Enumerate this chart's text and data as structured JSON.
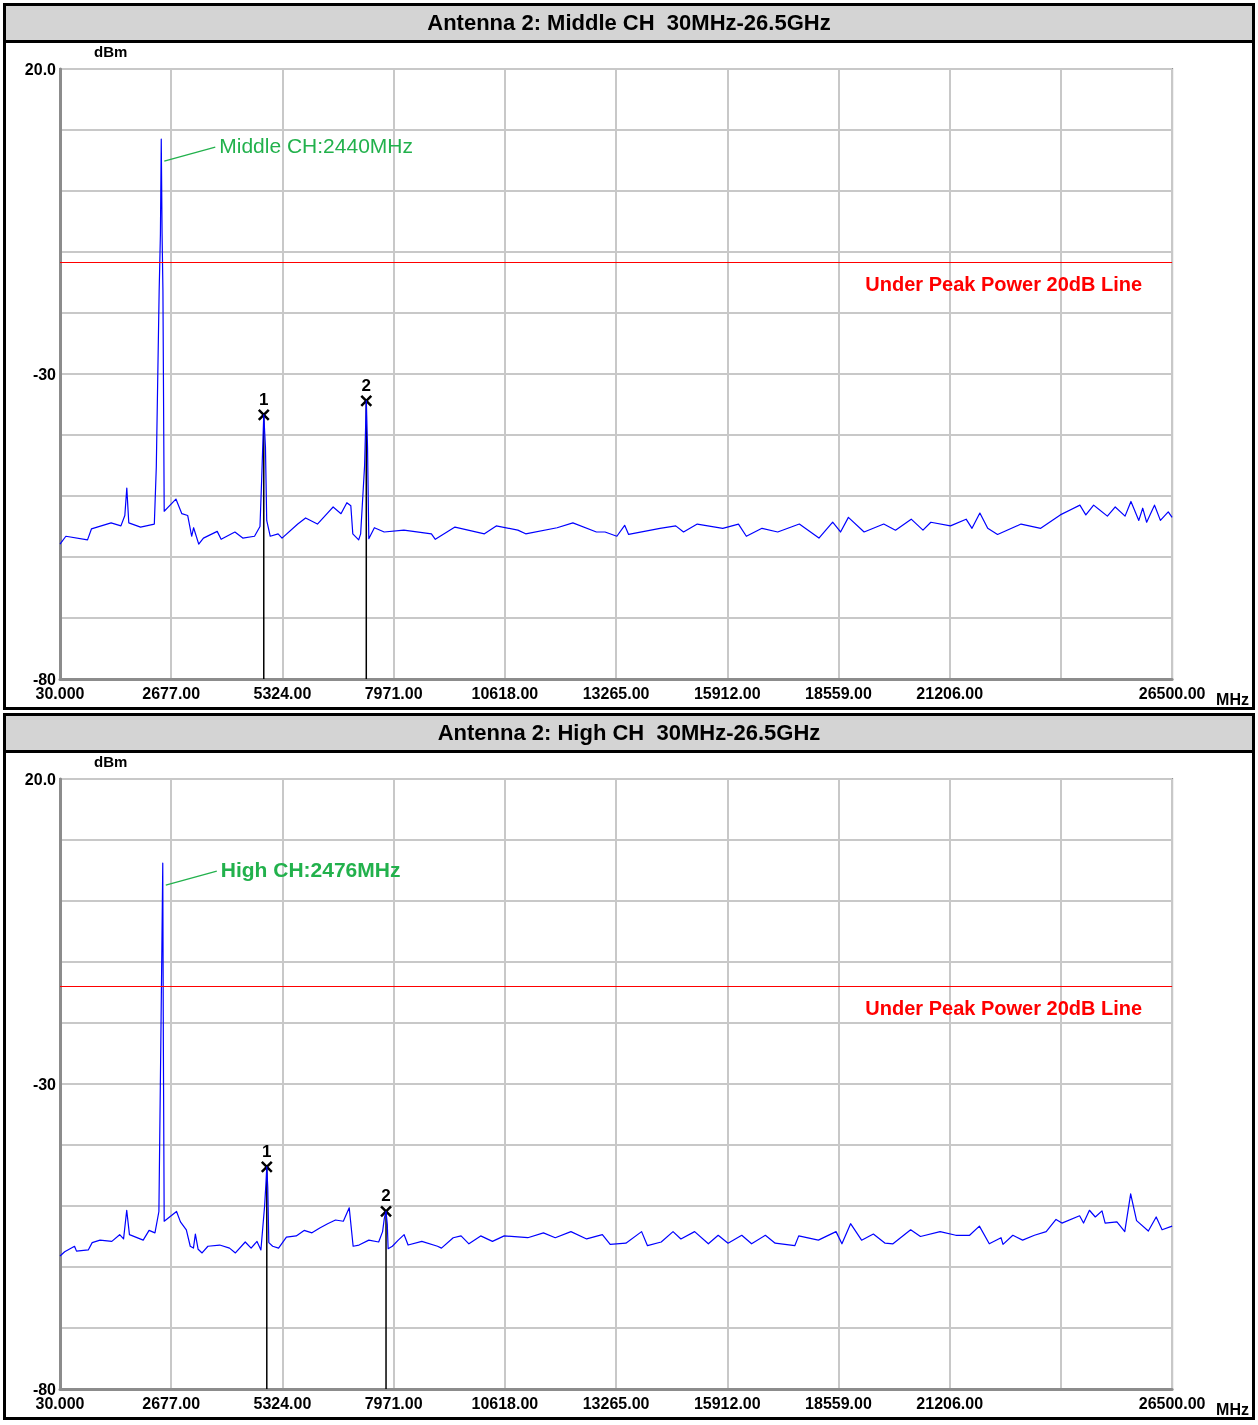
{
  "chart_data": [
    {
      "type": "line",
      "title": "Antenna 2: Middle CH  30MHz-26.5GHz",
      "xlabel": "MHz",
      "ylabel": "dBm",
      "xlim": [
        30,
        26500
      ],
      "ylim": [
        -80,
        20
      ],
      "xticks": [
        {
          "value": 30,
          "label": "30.000"
        },
        {
          "value": 2677,
          "label": "2677.00"
        },
        {
          "value": 5324,
          "label": "5324.00"
        },
        {
          "value": 7971,
          "label": "7971.00"
        },
        {
          "value": 10618,
          "label": "10618.00"
        },
        {
          "value": 13265,
          "label": "13265.00"
        },
        {
          "value": 15912,
          "label": "15912.00"
        },
        {
          "value": 18559,
          "label": "18559.00"
        },
        {
          "value": 21206,
          "label": "21206.00"
        },
        {
          "value": 23853,
          "label": null
        },
        {
          "value": 26500,
          "label": "26500.00"
        }
      ],
      "yticks": [
        {
          "value": 20,
          "label": "20.0"
        },
        {
          "value": 10,
          "label": null
        },
        {
          "value": 0,
          "label": null
        },
        {
          "value": -10,
          "label": null
        },
        {
          "value": -20,
          "label": null
        },
        {
          "value": -30,
          "label": "-30"
        },
        {
          "value": -40,
          "label": null
        },
        {
          "value": -50,
          "label": null
        },
        {
          "value": -60,
          "label": null
        },
        {
          "value": -70,
          "label": null
        },
        {
          "value": -80,
          "label": "-80"
        }
      ],
      "grid": true,
      "ref_lines": [
        {
          "axis": "y",
          "value": -11.6,
          "label": "Under Peak Power 20dB Line",
          "color": "#ff0000"
        }
      ],
      "annotations": [
        {
          "text": "Middle CH:2440MHz",
          "x": 2440,
          "y": 8.5
        },
        {
          "text": "1",
          "x": 4880,
          "y": -36.7
        },
        {
          "text": "2",
          "x": 7320,
          "y": -34.4
        }
      ],
      "series": [
        {
          "type": "line",
          "color": "#0000ff",
          "marker": "none",
          "x": [
            30,
            170,
            685,
            778,
            1246,
            1480,
            1573,
            1620,
            1667,
            1948,
            2275,
            2322,
            2390,
            2420,
            2440,
            2460,
            2480,
            2510,
            2789,
            2930,
            3070,
            3164,
            3210,
            3332,
            3444,
            3772,
            3865,
            4193,
            4380,
            4660,
            4790,
            4830,
            4880,
            4920,
            4950,
            5034,
            5221,
            5315,
            5689,
            5876,
            6157,
            6250,
            6531,
            6718,
            6858,
            6952,
            6999,
            7139,
            7186,
            7280,
            7320,
            7350,
            7380,
            7513,
            7747,
            8215,
            8870,
            8963,
            9431,
            10132,
            10413,
            10927,
            11114,
            11862,
            12237,
            12798,
            13003,
            13284,
            13470,
            13564,
            14311,
            14685,
            14871,
            15198,
            15805,
            16179,
            16366,
            16739,
            17113,
            17627,
            18094,
            18421,
            18608,
            18795,
            19169,
            19636,
            19916,
            20290,
            20570,
            20757,
            21224,
            21597,
            21737,
            21924,
            22111,
            22345,
            22905,
            23372,
            23838,
            24305,
            24446,
            24632,
            24959,
            25146,
            25380,
            25520,
            25707,
            25800,
            25894,
            26081,
            26221,
            26408,
            26500
          ],
          "values": [
            -57.9,
            -56.6,
            -57.2,
            -55.4,
            -54.4,
            -54.9,
            -53.2,
            -48.7,
            -54.4,
            -55.1,
            -54.6,
            -45.3,
            -16.4,
            -7.1,
            8.5,
            -7.1,
            -16.4,
            -52.5,
            -50.5,
            -52.9,
            -53.2,
            -56.6,
            -55.2,
            -57.9,
            -56.9,
            -55.8,
            -57.1,
            -55.9,
            -56.9,
            -56.6,
            -55,
            -47.3,
            -36.7,
            -42,
            -54,
            -56.6,
            -56.2,
            -56.9,
            -54.6,
            -53.6,
            -54.6,
            -53.9,
            -51.8,
            -52.9,
            -51.1,
            -51.6,
            -56.2,
            -57.2,
            -56.2,
            -45,
            -34.4,
            -42,
            -57,
            -55.2,
            -55.9,
            -55.6,
            -56.2,
            -57.1,
            -55.1,
            -56.2,
            -54.9,
            -55.6,
            -56.2,
            -55.2,
            -54.4,
            -55.9,
            -55.9,
            -56.6,
            -54.8,
            -56.3,
            -55.3,
            -54.9,
            -55.9,
            -54.6,
            -55.3,
            -54.6,
            -56.6,
            -55.3,
            -55.9,
            -54.6,
            -56.9,
            -54.3,
            -55.9,
            -53.5,
            -55.9,
            -54.6,
            -55.6,
            -53.8,
            -55.6,
            -54.3,
            -54.9,
            -53.8,
            -55.3,
            -52.8,
            -55.3,
            -56.3,
            -54.6,
            -55.3,
            -53.1,
            -51.5,
            -53.1,
            -51.5,
            -53.3,
            -51.8,
            -53.3,
            -50.9,
            -54,
            -52,
            -54.3,
            -51.5,
            -54,
            -52.6,
            -53.5
          ]
        },
        {
          "type": "lollipop",
          "color": "#000000",
          "marker": "cross",
          "x": [
            4880,
            7320
          ],
          "values": [
            -36.7,
            -34.4
          ]
        }
      ]
    },
    {
      "type": "line",
      "title": "Antenna 2: High CH  30MHz-26.5GHz",
      "xlabel": "MHz",
      "ylabel": "dBm",
      "xlim": [
        30,
        26500
      ],
      "ylim": [
        -80,
        20
      ],
      "xticks": [
        {
          "value": 30,
          "label": "30.000"
        },
        {
          "value": 2677,
          "label": "2677.00"
        },
        {
          "value": 5324,
          "label": "5324.00"
        },
        {
          "value": 7971,
          "label": "7971.00"
        },
        {
          "value": 10618,
          "label": "10618.00"
        },
        {
          "value": 13265,
          "label": "13265.00"
        },
        {
          "value": 15912,
          "label": "15912.00"
        },
        {
          "value": 18559,
          "label": "18559.00"
        },
        {
          "value": 21206,
          "label": "21206.00"
        },
        {
          "value": 23853,
          "label": null
        },
        {
          "value": 26500,
          "label": "26500.00"
        }
      ],
      "yticks": [
        {
          "value": 20,
          "label": "20.0"
        },
        {
          "value": 10,
          "label": null
        },
        {
          "value": 0,
          "label": null
        },
        {
          "value": -10,
          "label": null
        },
        {
          "value": -20,
          "label": null
        },
        {
          "value": -30,
          "label": "-30"
        },
        {
          "value": -40,
          "label": null
        },
        {
          "value": -50,
          "label": null
        },
        {
          "value": -60,
          "label": null
        },
        {
          "value": -70,
          "label": null
        },
        {
          "value": -80,
          "label": "-80"
        }
      ],
      "grid": true,
      "ref_lines": [
        {
          "axis": "y",
          "value": -13.9,
          "label": "Under Peak Power 20dB Line",
          "color": "#ff0000"
        }
      ],
      "annotations": [
        {
          "text": "High CH:2476MHz",
          "x": 2476,
          "y": 6.2
        },
        {
          "text": "1",
          "x": 4952,
          "y": -43.6
        },
        {
          "text": "2",
          "x": 7790,
          "y": -50.9
        }
      ],
      "series": [
        {
          "type": "line",
          "color": "#0000ff",
          "marker": "none",
          "x": [
            30,
            142,
            376,
            423,
            703,
            796,
            983,
            1263,
            1450,
            1543,
            1618,
            1683,
            2010,
            2150,
            2290,
            2384,
            2430,
            2455,
            2476,
            2490,
            2510,
            2804,
            2897,
            3037,
            3130,
            3206,
            3252,
            3318,
            3411,
            3551,
            3831,
            4065,
            4205,
            4439,
            4579,
            4719,
            4812,
            4900,
            4930,
            4952,
            4975,
            5000,
            5092,
            5232,
            5419,
            5653,
            5840,
            6027,
            6213,
            6400,
            6587,
            6774,
            6914,
            7007,
            7147,
            7381,
            7615,
            7708,
            7750,
            7790,
            7820,
            7840,
            7941,
            8081,
            8221,
            8315,
            8642,
            9016,
            9109,
            9389,
            9576,
            9763,
            10043,
            10323,
            10603,
            11164,
            11537,
            11818,
            12191,
            12565,
            12939,
            13125,
            13499,
            13873,
            14013,
            14340,
            14621,
            14808,
            15135,
            15462,
            15696,
            15930,
            16257,
            16491,
            16818,
            17052,
            17519,
            17613,
            18080,
            18501,
            18641,
            18847,
            19109,
            19389,
            19669,
            19856,
            20277,
            20510,
            20978,
            21352,
            21680,
            21913,
            22148,
            22428,
            22475,
            22709,
            22942,
            23223,
            23503,
            23737,
            23877,
            24298,
            24392,
            24532,
            24672,
            24831,
            24906,
            25186,
            25373,
            25513,
            25654,
            25934,
            26121,
            26261,
            26500
          ],
          "values": [
            -58.2,
            -57.5,
            -56.6,
            -57.4,
            -57.2,
            -56,
            -55.6,
            -55.8,
            -54.7,
            -55.4,
            -50.7,
            -54.7,
            -55.6,
            -54,
            -54.4,
            -50.9,
            -23.1,
            -7.6,
            6.2,
            -23.1,
            -52.5,
            -50.9,
            -52.6,
            -53.9,
            -56.6,
            -56.9,
            -54.6,
            -57.1,
            -57.7,
            -56.6,
            -56.4,
            -56.9,
            -57.7,
            -55.9,
            -56.9,
            -55.8,
            -57.2,
            -50,
            -46.5,
            -43.6,
            -47,
            -56,
            -56.6,
            -56.9,
            -55.1,
            -54.9,
            -54,
            -54.4,
            -53.6,
            -52.9,
            -52.3,
            -52.5,
            -50.3,
            -56.6,
            -56.4,
            -55.6,
            -55.9,
            -54.2,
            -52,
            -50.9,
            -53,
            -57,
            -56.6,
            -55.6,
            -54.7,
            -56.4,
            -55.8,
            -56.6,
            -56.9,
            -55.2,
            -54.9,
            -56.2,
            -54.9,
            -55.8,
            -54.9,
            -55.2,
            -54.4,
            -55.2,
            -54.2,
            -55.4,
            -54.7,
            -56.3,
            -56.1,
            -54.2,
            -56.5,
            -55.9,
            -54.2,
            -55.4,
            -54.2,
            -56.2,
            -54.8,
            -56.1,
            -54.8,
            -56.2,
            -54.8,
            -56.1,
            -56.5,
            -54.9,
            -55.6,
            -54.2,
            -56.2,
            -52.9,
            -55.6,
            -54.6,
            -56.1,
            -56.2,
            -53.9,
            -55,
            -54.2,
            -54.8,
            -54.8,
            -53.3,
            -56.2,
            -55.2,
            -56.3,
            -54.8,
            -55.6,
            -54.8,
            -54.2,
            -52.2,
            -52.8,
            -51.6,
            -52.8,
            -50.7,
            -51.8,
            -50.8,
            -52.8,
            -52.6,
            -54.2,
            -48,
            -52.4,
            -54.1,
            -51.8,
            -53.9,
            -53.3
          ]
        },
        {
          "type": "lollipop",
          "color": "#000000",
          "marker": "cross",
          "x": [
            4952,
            7790
          ],
          "values": [
            -43.6,
            -50.9
          ]
        }
      ]
    }
  ]
}
